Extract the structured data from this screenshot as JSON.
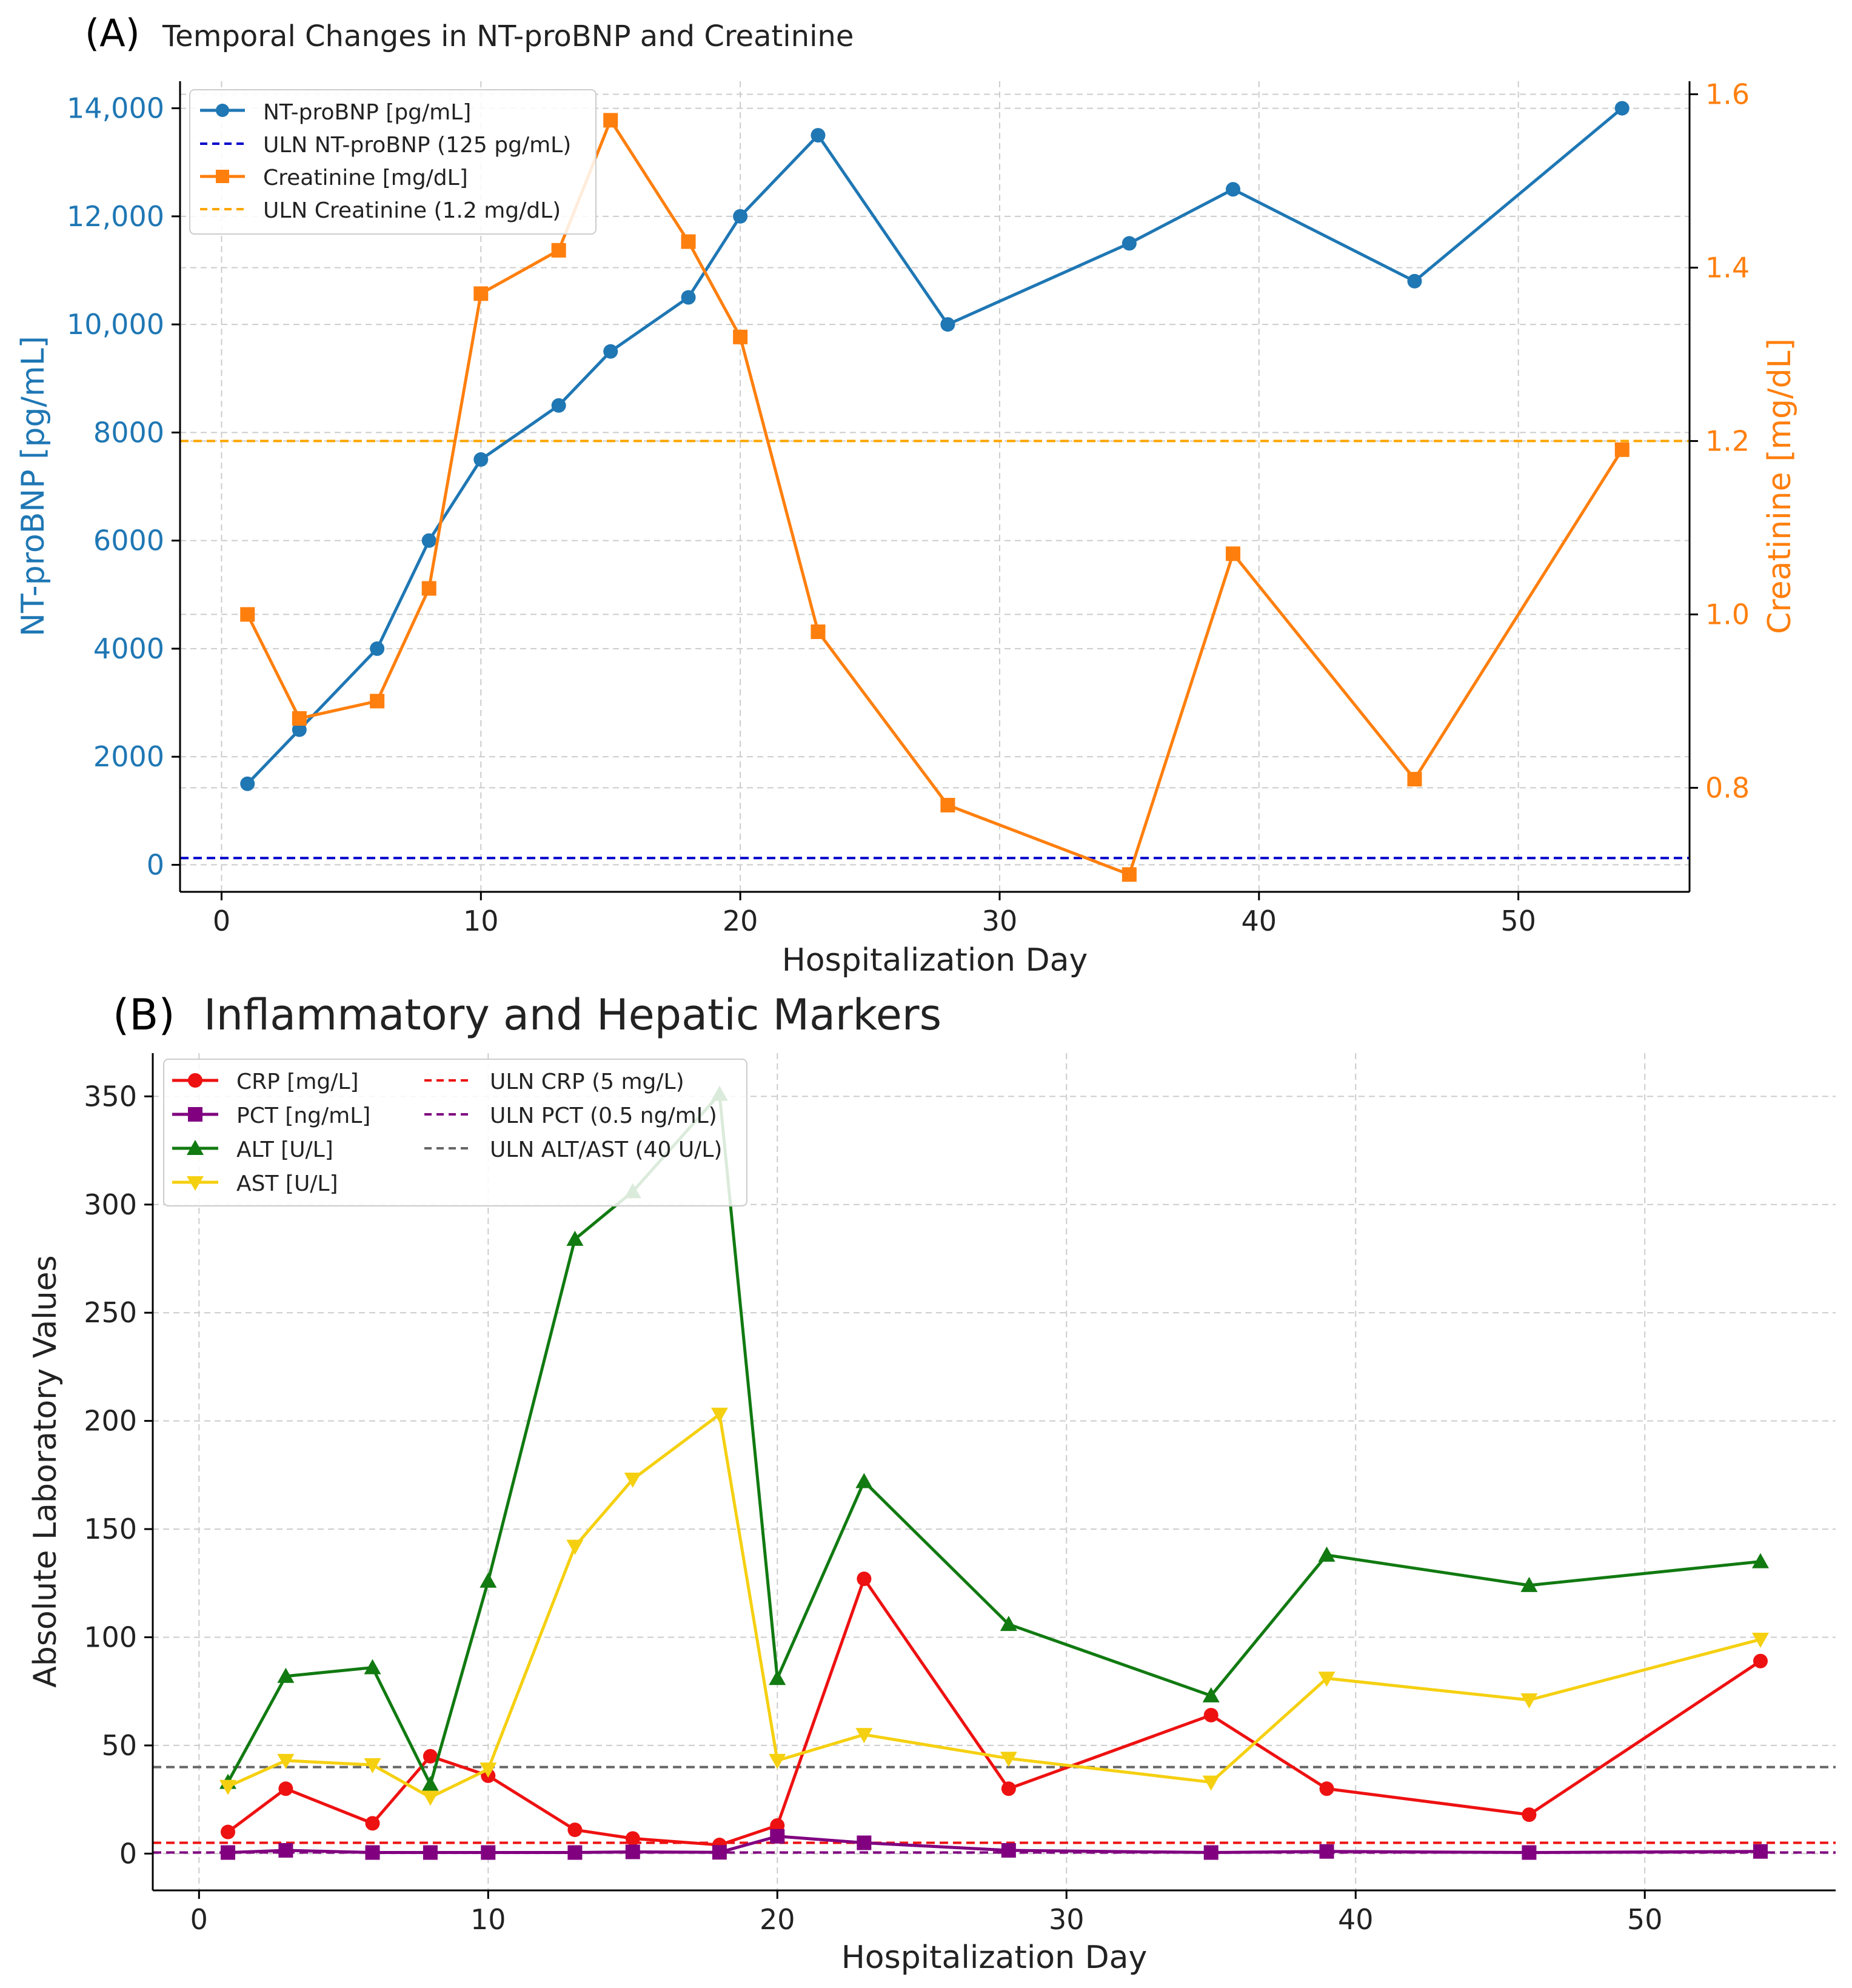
{
  "chart_data": [
    {
      "type": "line",
      "panel_tag": "(A)",
      "title": "Temporal Changes in NT-proBNP and Creatinine",
      "xlabel": "Hospitalization Day",
      "ylabel_left": "NT-proBNP [pg/mL]",
      "ylabel_right": "Creatinine [mg/dL]",
      "xlim": [
        -1.6,
        56.6
      ],
      "ylim_left": [
        -500,
        14500
      ],
      "ylim_right": [
        0.68,
        1.615
      ],
      "grid": true,
      "legend_position": "upper-left",
      "x_ticks": [
        0,
        10,
        20,
        30,
        40,
        50
      ],
      "x_tick_labels": [
        "0",
        "10",
        "20",
        "30",
        "40",
        "50"
      ],
      "y_left_ticks": [
        0,
        2000,
        4000,
        6000,
        8000,
        10000,
        12000,
        14000
      ],
      "y_left_tick_labels": [
        "0",
        "2000",
        "4000",
        "6000",
        "8000",
        "10,000",
        "12,000",
        "14,000"
      ],
      "y_right_ticks": [
        0.8,
        1.0,
        1.2,
        1.4,
        1.6
      ],
      "y_right_tick_labels": [
        "0.8",
        "1.0",
        "1.2",
        "1.4",
        "1.6"
      ],
      "colors": {
        "left_axis": "#1f77b4",
        "right_axis": "#ff7f0e"
      },
      "series": [
        {
          "name": "NT-proBNP [pg/mL]",
          "axis": "left",
          "kind": "line",
          "marker": "circle",
          "color": "#1f77b4",
          "x": [
            1,
            3,
            6,
            8,
            10,
            13,
            15,
            18,
            20,
            23,
            28,
            35,
            39,
            46,
            54
          ],
          "values": [
            1500,
            2500,
            4000,
            6000,
            7500,
            8500,
            9500,
            10500,
            12000,
            13500,
            10000,
            11500,
            12500,
            10800,
            14000
          ]
        },
        {
          "name": "ULN NT-proBNP (125 pg/mL)",
          "axis": "left",
          "kind": "hline",
          "color": "#0000cc",
          "value": 125
        },
        {
          "name": "Creatinine [mg/dL]",
          "axis": "right",
          "kind": "line",
          "marker": "square",
          "color": "#ff7f0e",
          "x": [
            1,
            3,
            6,
            8,
            10,
            13,
            15,
            18,
            20,
            23,
            28,
            35,
            39,
            46,
            54
          ],
          "values": [
            1.0,
            0.88,
            0.9,
            1.03,
            1.37,
            1.42,
            1.57,
            1.43,
            1.32,
            0.98,
            0.78,
            0.7,
            1.07,
            0.81,
            1.19
          ]
        },
        {
          "name": "ULN Creatinine (1.2 mg/dL)",
          "axis": "right",
          "kind": "hline",
          "color": "#ffa500",
          "value": 1.2
        }
      ]
    },
    {
      "type": "line",
      "panel_tag": "(B)",
      "title": "Inflammatory and Hepatic Markers",
      "xlabel": "Hospitalization Day",
      "ylabel": "Absolute Laboratory Values",
      "xlim": [
        -1.6,
        56.6
      ],
      "ylim": [
        -17,
        370
      ],
      "grid": true,
      "legend_position": "upper-left",
      "legend_columns": 2,
      "x_ticks": [
        0,
        10,
        20,
        30,
        40,
        50
      ],
      "x_tick_labels": [
        "0",
        "10",
        "20",
        "30",
        "40",
        "50"
      ],
      "y_ticks": [
        0,
        50,
        100,
        150,
        200,
        250,
        300,
        350
      ],
      "y_tick_labels": [
        "0",
        "50",
        "100",
        "150",
        "200",
        "250",
        "300",
        "350"
      ],
      "series": [
        {
          "name": "CRP [mg/L]",
          "kind": "line",
          "marker": "circle",
          "color": "#ee1111",
          "x": [
            1,
            3,
            6,
            8,
            10,
            13,
            15,
            18,
            20,
            23,
            28,
            35,
            39,
            46,
            54
          ],
          "values": [
            10,
            30,
            14,
            45,
            36,
            11,
            7,
            4,
            13,
            127,
            30,
            64,
            30,
            18,
            89
          ]
        },
        {
          "name": "PCT [ng/mL]",
          "kind": "line",
          "marker": "square",
          "color": "#800080",
          "x": [
            1,
            3,
            6,
            8,
            10,
            13,
            15,
            18,
            20,
            23,
            28,
            35,
            39,
            46,
            54
          ],
          "values": [
            0.5,
            1.5,
            0.5,
            0.5,
            0.5,
            0.5,
            0.8,
            0.6,
            8,
            5,
            1.5,
            0.5,
            1,
            0.5,
            1
          ]
        },
        {
          "name": "ALT [U/L]",
          "kind": "line",
          "marker": "triangle-up",
          "color": "#117a11",
          "x": [
            1,
            3,
            6,
            8,
            10,
            13,
            15,
            18,
            20,
            23,
            28,
            35,
            39,
            46,
            54
          ],
          "values": [
            33,
            82,
            86,
            32,
            126,
            284,
            306,
            351,
            81,
            172,
            106,
            73,
            138,
            124,
            135
          ]
        },
        {
          "name": "AST [U/L]",
          "kind": "line",
          "marker": "triangle-down",
          "color": "#f5d011",
          "x": [
            1,
            3,
            6,
            8,
            10,
            13,
            15,
            18,
            20,
            23,
            28,
            35,
            39,
            46,
            54
          ],
          "values": [
            31,
            43,
            41,
            26,
            39,
            142,
            173,
            203,
            43,
            55,
            44,
            33,
            81,
            71,
            99
          ]
        },
        {
          "name": "ULN CRP (5 mg/L)",
          "kind": "hline",
          "color": "#ee1111",
          "value": 5
        },
        {
          "name": "ULN PCT (0.5 ng/mL)",
          "kind": "hline",
          "color": "#800080",
          "value": 0.5
        },
        {
          "name": "ULN ALT/AST (40 U/L)",
          "kind": "hline",
          "color": "#666666",
          "value": 40
        }
      ]
    }
  ]
}
